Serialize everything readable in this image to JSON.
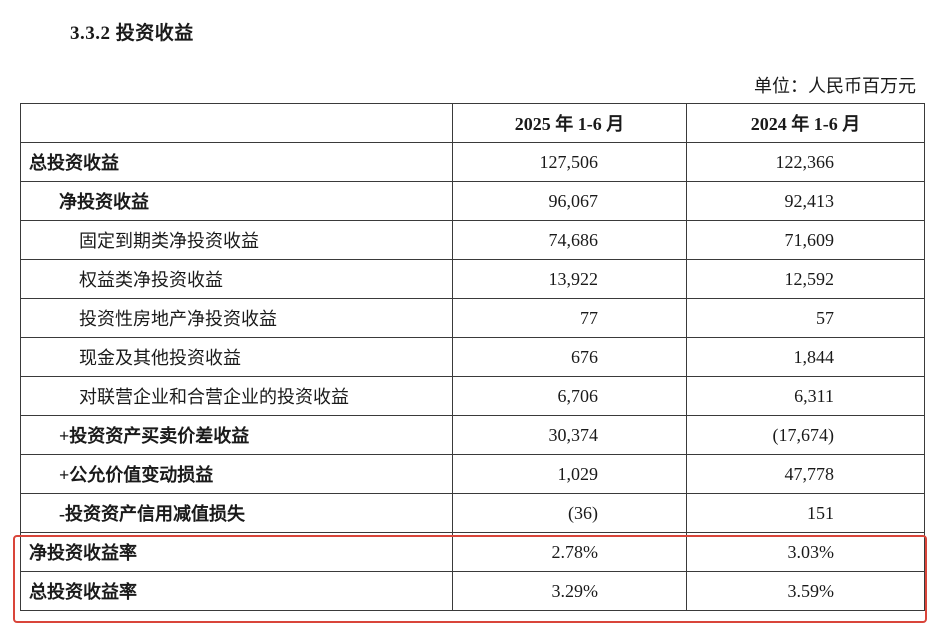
{
  "section": {
    "title": "3.3.2 投资收益",
    "unit": "单位：人民币百万元"
  },
  "table": {
    "headers": [
      "",
      "2025 年 1-6 月",
      "2024 年 1-6 月"
    ],
    "rows": [
      {
        "label": "总投资收益",
        "level": 0,
        "v2025": "127,506",
        "v2024": "122,366"
      },
      {
        "label": "净投资收益",
        "level": 1,
        "v2025": "96,067",
        "v2024": "92,413"
      },
      {
        "label": "固定到期类净投资收益",
        "level": 2,
        "v2025": "74,686",
        "v2024": "71,609"
      },
      {
        "label": "权益类净投资收益",
        "level": 2,
        "v2025": "13,922",
        "v2024": "12,592"
      },
      {
        "label": "投资性房地产净投资收益",
        "level": 2,
        "v2025": "77",
        "v2024": "57"
      },
      {
        "label": "现金及其他投资收益",
        "level": 2,
        "v2025": "676",
        "v2024": "1,844"
      },
      {
        "label": "对联营企业和合营企业的投资收益",
        "level": 2,
        "v2025": "6,706",
        "v2024": "6,311"
      },
      {
        "label": "+投资资产买卖价差收益",
        "level": 1,
        "v2025": "30,374",
        "v2024": "(17,674)"
      },
      {
        "label": "+公允价值变动损益",
        "level": 1,
        "v2025": "1,029",
        "v2024": "47,778"
      },
      {
        "label": "-投资资产信用减值损失",
        "level": 1,
        "v2025": "(36)",
        "v2024": "151"
      },
      {
        "label": "净投资收益率",
        "level": 0,
        "v2025": "2.78%",
        "v2024": "3.03%"
      },
      {
        "label": "总投资收益率",
        "level": 0,
        "v2025": "3.29%",
        "v2024": "3.59%"
      }
    ]
  },
  "highlight_color": "#d9453a"
}
